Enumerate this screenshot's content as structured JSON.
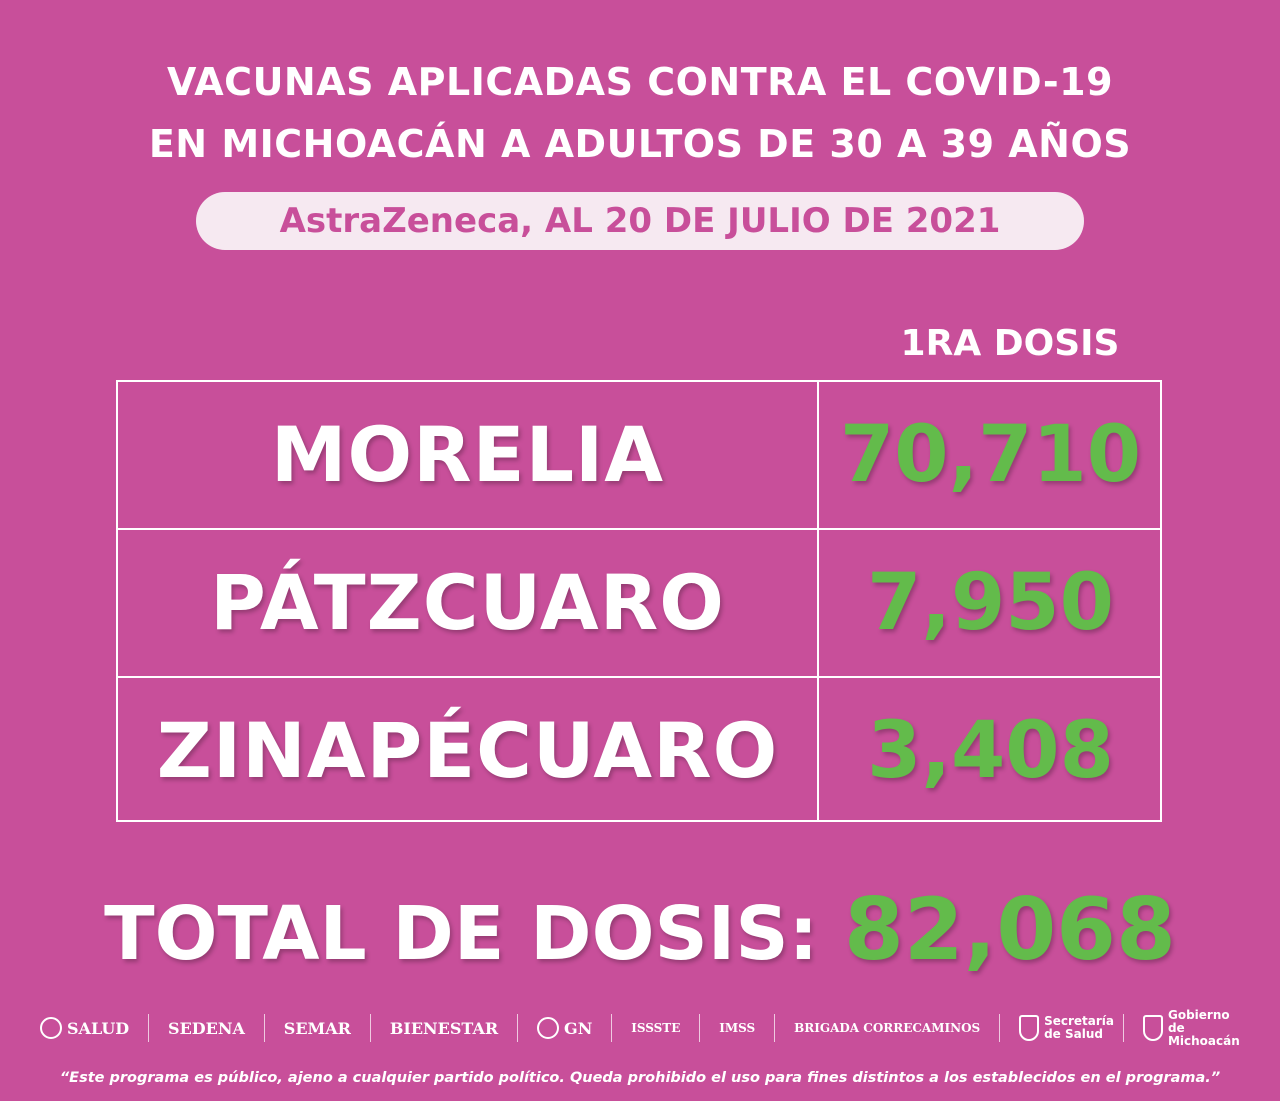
{
  "title": {
    "line1_light": "VACUNAS APLICADAS ",
    "line1_bold": "CONTRA EL COVID-19",
    "line2": "EN MICHOACÁN A ADULTOS DE 30 A 39 AÑOS"
  },
  "subtitle": "AstraZeneca, AL 20 DE JULIO DE 2021",
  "column_header": "1RA DOSIS",
  "rows": [
    {
      "municipio": "MORELIA",
      "dosis": "70,710"
    },
    {
      "municipio": "PÁTZCUARO",
      "dosis": "7,950"
    },
    {
      "municipio": "ZINAPÉCUARO",
      "dosis": "3,408"
    }
  ],
  "total": {
    "label": "TOTAL DE DOSIS: ",
    "value": "82,068"
  },
  "logos": [
    {
      "name": "SALUD",
      "icon": "seal-icon"
    },
    {
      "name": "SEDENA"
    },
    {
      "name": "SEMAR"
    },
    {
      "name": "BIENESTAR"
    },
    {
      "name": "GN",
      "icon": "seal-icon"
    },
    {
      "name": "ISSSTE"
    },
    {
      "name": "IMSS"
    },
    {
      "name": "BRIGADA CORRECAMINOS"
    },
    {
      "name": "Secretaría de Salud",
      "icon": "shield-icon"
    },
    {
      "name": "Gobierno de Michoacán",
      "icon": "shield-icon"
    }
  ],
  "disclaimer": "“Este programa es público, ajeno a cualquier partido político. Queda prohibido el uso para fines distintos a los establecidos en el programa.”",
  "colors": {
    "background": "#c84f9a",
    "accent_green": "#63bb4b",
    "pill": "#f6e9f1"
  }
}
